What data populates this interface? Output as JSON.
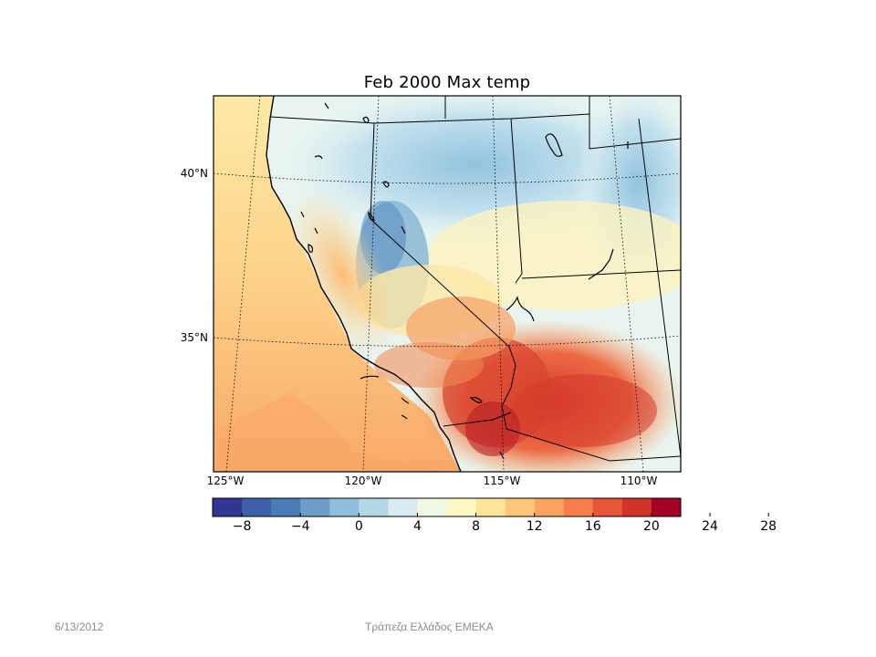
{
  "map": {
    "title": "Feb 2000 Max temp",
    "lon_labels": [
      "125°W",
      "120°W",
      "115°W",
      "110°W"
    ],
    "lat_labels": [
      "40°N",
      "35°N"
    ]
  },
  "colorbar": {
    "ticks": [
      "−8",
      "−4",
      "0",
      "4",
      "8",
      "12",
      "16",
      "20",
      "24",
      "28"
    ],
    "colors": [
      "#313695",
      "#3e5fa9",
      "#4a7bb7",
      "#6d9ec9",
      "#8fbfdc",
      "#b2d8e8",
      "#d6ecf2",
      "#eef8e2",
      "#fbf7c2",
      "#fee49a",
      "#fdc679",
      "#fca35f",
      "#f67e4b",
      "#e75638",
      "#d13229",
      "#a50026"
    ]
  },
  "footer": {
    "date": "6/13/2012",
    "organization": "Τράπεζα Ελλάδος ΕΜΕΚΑ"
  }
}
